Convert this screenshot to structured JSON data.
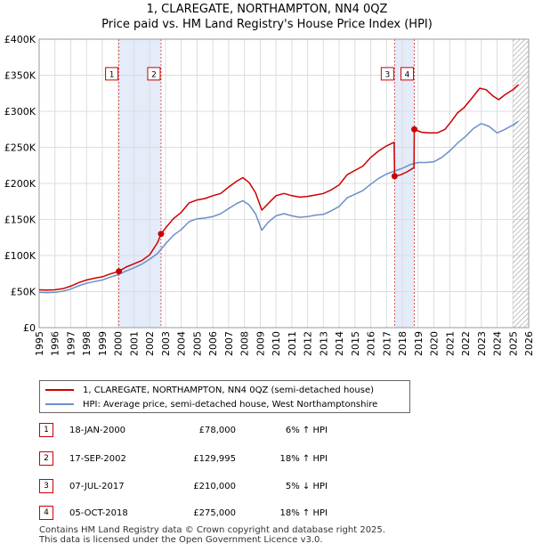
{
  "title_line1": "1, CLAREGATE, NORTHAMPTON, NN4 0QZ",
  "title_line2": "Price paid vs. HM Land Registry's House Price Index (HPI)",
  "chart_data": {
    "type": "line",
    "x_range": [
      1995,
      2026
    ],
    "ylim": [
      0,
      400000
    ],
    "y_ticks": [
      {
        "v": 0,
        "label": "£0"
      },
      {
        "v": 50000,
        "label": "£50K"
      },
      {
        "v": 100000,
        "label": "£100K"
      },
      {
        "v": 150000,
        "label": "£150K"
      },
      {
        "v": 200000,
        "label": "£200K"
      },
      {
        "v": 250000,
        "label": "£250K"
      },
      {
        "v": 300000,
        "label": "£300K"
      },
      {
        "v": 350000,
        "label": "£350K"
      },
      {
        "v": 400000,
        "label": "£400K"
      }
    ],
    "x_ticks": [
      "1995",
      "1996",
      "1997",
      "1998",
      "1999",
      "2000",
      "2001",
      "2002",
      "2003",
      "2004",
      "2005",
      "2006",
      "2007",
      "2008",
      "2009",
      "2010",
      "2011",
      "2012",
      "2013",
      "2014",
      "2015",
      "2016",
      "2017",
      "2018",
      "2019",
      "2020",
      "2021",
      "2022",
      "2023",
      "2024",
      "2025",
      "2026"
    ],
    "grid": true,
    "future_hatch_from": 2025.0,
    "shaded_spans": [
      [
        2000.05,
        2002.71
      ],
      [
        2017.51,
        2018.76
      ]
    ],
    "series": [
      {
        "name": "1, CLAREGATE, NORTHAMPTON, NN4 0QZ (semi-detached house)",
        "color": "#cc0000",
        "points": [
          [
            1995,
            52500
          ],
          [
            1995.5,
            52000
          ],
          [
            1996,
            52500
          ],
          [
            1996.5,
            54000
          ],
          [
            1997,
            57500
          ],
          [
            1997.5,
            62500
          ],
          [
            1998,
            66000
          ],
          [
            1998.5,
            68500
          ],
          [
            1999,
            70500
          ],
          [
            1999.5,
            74500
          ],
          [
            2000.05,
            78000
          ],
          [
            2000.5,
            84000
          ],
          [
            2001,
            88500
          ],
          [
            2001.5,
            93000
          ],
          [
            2002,
            101000
          ],
          [
            2002.5,
            118000
          ],
          [
            2002.72,
            129995
          ],
          [
            2003,
            138000
          ],
          [
            2003.5,
            151000
          ],
          [
            2004,
            160000
          ],
          [
            2004.5,
            173000
          ],
          [
            2005,
            177000
          ],
          [
            2005.5,
            179000
          ],
          [
            2006,
            183000
          ],
          [
            2006.5,
            186000
          ],
          [
            2007,
            195000
          ],
          [
            2007.5,
            203000
          ],
          [
            2007.9,
            208000
          ],
          [
            2008.3,
            201000
          ],
          [
            2008.7,
            187000
          ],
          [
            2009.1,
            163000
          ],
          [
            2009.5,
            172000
          ],
          [
            2010,
            183000
          ],
          [
            2010.5,
            186000
          ],
          [
            2011,
            183000
          ],
          [
            2011.5,
            181000
          ],
          [
            2012,
            182000
          ],
          [
            2012.5,
            184000
          ],
          [
            2013,
            186000
          ],
          [
            2013.5,
            191000
          ],
          [
            2014,
            198000
          ],
          [
            2014.5,
            212000
          ],
          [
            2015,
            218000
          ],
          [
            2015.5,
            224000
          ],
          [
            2016,
            236000
          ],
          [
            2016.5,
            245000
          ],
          [
            2017,
            252000
          ],
          [
            2017.48,
            257000
          ],
          [
            2017.51,
            210000
          ],
          [
            2017.9,
            212000
          ],
          [
            2018.3,
            216000
          ],
          [
            2018.74,
            222000
          ],
          [
            2018.76,
            275000
          ],
          [
            2019.2,
            271000
          ],
          [
            2019.7,
            270000
          ],
          [
            2020.2,
            270000
          ],
          [
            2020.7,
            275000
          ],
          [
            2021.1,
            286000
          ],
          [
            2021.5,
            298000
          ],
          [
            2021.9,
            305000
          ],
          [
            2022.4,
            318000
          ],
          [
            2022.9,
            332000
          ],
          [
            2023.3,
            330000
          ],
          [
            2023.7,
            322000
          ],
          [
            2024.1,
            316000
          ],
          [
            2024.5,
            323000
          ],
          [
            2025,
            330000
          ],
          [
            2025.35,
            337000
          ]
        ]
      },
      {
        "name": "HPI: Average price, semi-detached house, West Northamptonshire",
        "color": "#6b8fc9",
        "points": [
          [
            1995,
            49000
          ],
          [
            1995.5,
            48500
          ],
          [
            1996,
            49000
          ],
          [
            1996.5,
            50500
          ],
          [
            1997,
            53500
          ],
          [
            1997.5,
            58000
          ],
          [
            1998,
            61500
          ],
          [
            1998.5,
            64000
          ],
          [
            1999,
            66000
          ],
          [
            1999.5,
            70000
          ],
          [
            2000,
            73500
          ],
          [
            2000.5,
            78500
          ],
          [
            2001,
            83000
          ],
          [
            2001.5,
            88000
          ],
          [
            2002,
            95000
          ],
          [
            2002.5,
            103000
          ],
          [
            2003,
            116000
          ],
          [
            2003.5,
            128000
          ],
          [
            2004,
            136000
          ],
          [
            2004.5,
            147000
          ],
          [
            2005,
            151000
          ],
          [
            2005.5,
            152000
          ],
          [
            2006,
            154000
          ],
          [
            2006.5,
            158000
          ],
          [
            2007,
            165000
          ],
          [
            2007.5,
            172000
          ],
          [
            2007.9,
            176000
          ],
          [
            2008.3,
            170000
          ],
          [
            2008.7,
            158000
          ],
          [
            2009.1,
            135000
          ],
          [
            2009.5,
            146000
          ],
          [
            2010,
            155000
          ],
          [
            2010.5,
            158000
          ],
          [
            2011,
            155000
          ],
          [
            2011.5,
            153000
          ],
          [
            2012,
            154000
          ],
          [
            2012.5,
            156000
          ],
          [
            2013,
            157000
          ],
          [
            2013.5,
            162000
          ],
          [
            2014,
            168000
          ],
          [
            2014.5,
            180000
          ],
          [
            2015,
            185000
          ],
          [
            2015.5,
            190000
          ],
          [
            2016,
            199000
          ],
          [
            2016.5,
            207000
          ],
          [
            2017,
            213000
          ],
          [
            2017.5,
            217000
          ],
          [
            2018,
            221000
          ],
          [
            2018.5,
            226000
          ],
          [
            2019,
            229000
          ],
          [
            2019.5,
            229000
          ],
          [
            2020,
            230000
          ],
          [
            2020.5,
            236000
          ],
          [
            2021,
            245000
          ],
          [
            2021.5,
            256000
          ],
          [
            2022,
            265000
          ],
          [
            2022.5,
            276000
          ],
          [
            2023,
            283000
          ],
          [
            2023.5,
            279000
          ],
          [
            2024,
            270000
          ],
          [
            2024.5,
            275000
          ],
          [
            2025,
            281000
          ],
          [
            2025.35,
            286000
          ]
        ]
      }
    ],
    "sales": [
      {
        "n": "1",
        "x": 2000.05,
        "y": 78000
      },
      {
        "n": "2",
        "x": 2002.72,
        "y": 129995
      },
      {
        "n": "3",
        "x": 2017.51,
        "y": 210000
      },
      {
        "n": "4",
        "x": 2018.76,
        "y": 275000
      }
    ],
    "marker_labels": [
      {
        "n": "1",
        "x": 2000.05,
        "y": 352000,
        "side": "left"
      },
      {
        "n": "2",
        "x": 2002.72,
        "y": 352000,
        "side": "left"
      },
      {
        "n": "3",
        "x": 2017.51,
        "y": 352000,
        "side": "left"
      },
      {
        "n": "4",
        "x": 2018.76,
        "y": 352000,
        "side": "left"
      }
    ]
  },
  "legend": {
    "red": "1, CLAREGATE, NORTHAMPTON, NN4 0QZ (semi-detached house)",
    "blue": "HPI: Average price, semi-detached house, West Northamptonshire"
  },
  "transactions": [
    {
      "n": "1",
      "date": "18-JAN-2000",
      "price": "£78,000",
      "hpi": "6% ↑ HPI"
    },
    {
      "n": "2",
      "date": "17-SEP-2002",
      "price": "£129,995",
      "hpi": "18% ↑ HPI"
    },
    {
      "n": "3",
      "date": "07-JUL-2017",
      "price": "£210,000",
      "hpi": "5% ↓ HPI"
    },
    {
      "n": "4",
      "date": "05-OCT-2018",
      "price": "£275,000",
      "hpi": "18% ↑ HPI"
    }
  ],
  "footer_line1": "Contains HM Land Registry data © Crown copyright and database right 2025.",
  "footer_line2": "This data is licensed under the Open Government Licence v3.0."
}
